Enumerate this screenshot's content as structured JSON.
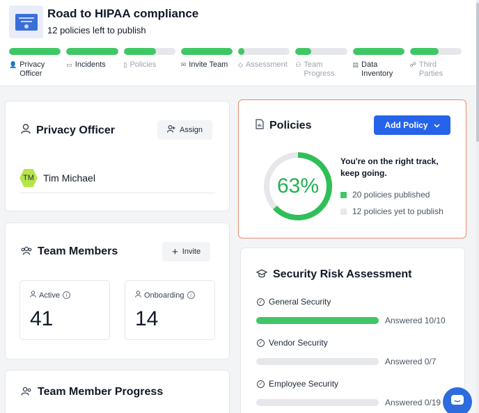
{
  "header": {
    "title": "Road to HIPAA compliance",
    "subtitle": "12 policies left to publish",
    "icon": "certificate-icon"
  },
  "steps": [
    {
      "label": "Privacy Officer",
      "progress": 1.0,
      "state": "active"
    },
    {
      "label": "Incidents",
      "progress": 1.0,
      "state": "active"
    },
    {
      "label": "Policies",
      "progress": 0.63,
      "state": "muted"
    },
    {
      "label": "Invite Team",
      "progress": 1.0,
      "state": "active"
    },
    {
      "label": "Assessment",
      "progress": 0.12,
      "state": "muted"
    },
    {
      "label": "Team Progress",
      "progress": 0.3,
      "state": "muted"
    },
    {
      "label": "Data Inventory",
      "progress": 1.0,
      "state": "active"
    },
    {
      "label": "Third Parties",
      "progress": 0.55,
      "state": "muted"
    }
  ],
  "privacy_officer": {
    "title": "Privacy Officer",
    "assign_label": "Assign",
    "avatar_initials": "TM",
    "name": "Tim Michael"
  },
  "team_members": {
    "title": "Team Members",
    "invite_label": "Invite",
    "active_label": "Active",
    "active_value": "41",
    "onboarding_label": "Onboarding",
    "onboarding_value": "14"
  },
  "team_progress": {
    "title": "Team Member Progress"
  },
  "policies": {
    "title": "Policies",
    "add_label": "Add Policy",
    "percent_label": "63%",
    "percent": 0.63,
    "message": "You're on the right track, keep going.",
    "published_label": "20 policies published",
    "unpublished_label": "12 policies yet to publish"
  },
  "sra": {
    "title": "Security Risk Assessment",
    "items": [
      {
        "label": "General Security",
        "answered": "Answered 10/10",
        "progress": 1.0
      },
      {
        "label": "Vendor Security",
        "answered": "Answered 0/7",
        "progress": 0.0
      },
      {
        "label": "Employee Security",
        "answered": "Answered 0/19",
        "progress": 0.0
      }
    ]
  },
  "colors": {
    "accent": "#2563eb",
    "success": "#3fc765",
    "highlight_border": "#e9896a"
  }
}
